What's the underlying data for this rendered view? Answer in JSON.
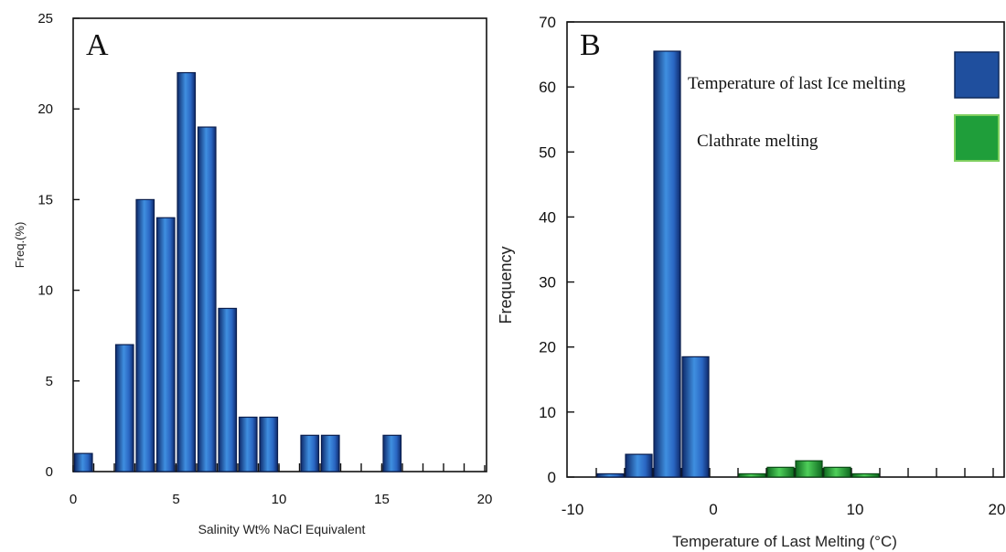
{
  "chart_data": [
    {
      "type": "bar",
      "panel": "A",
      "xlabel": "Salinity Wt% NaCl Equivalent",
      "ylabel": "Freq.(%)",
      "xlim": [
        0,
        20
      ],
      "ylim": [
        0,
        25
      ],
      "xticks": [
        0,
        5,
        10,
        15,
        20
      ],
      "yticks": [
        0,
        5,
        10,
        15,
        20,
        25
      ],
      "bin_width": 1,
      "bars": [
        {
          "x": 0,
          "value": 1
        },
        {
          "x": 2,
          "value": 7
        },
        {
          "x": 3,
          "value": 15
        },
        {
          "x": 4,
          "value": 14
        },
        {
          "x": 5,
          "value": 22
        },
        {
          "x": 6,
          "value": 19
        },
        {
          "x": 7,
          "value": 9
        },
        {
          "x": 8,
          "value": 3
        },
        {
          "x": 9,
          "value": 3
        },
        {
          "x": 11,
          "value": 2
        },
        {
          "x": 12,
          "value": 2
        },
        {
          "x": 15,
          "value": 2
        }
      ],
      "bar_color": "#1f4f9e",
      "grid": false
    },
    {
      "type": "bar",
      "panel": "B",
      "xlabel": "Temperature of Last Melting (°C)",
      "ylabel": "Frequency",
      "ylim": [
        0,
        70
      ],
      "yticks": [
        0,
        10,
        20,
        30,
        40,
        50,
        60,
        70
      ],
      "xticks": [
        "-10",
        "0",
        "10",
        "20"
      ],
      "legend_position": "top-right",
      "series": [
        {
          "name": "Temperature of last Ice melting",
          "color": "#1f4f9e",
          "bars": [
            {
              "slot": 0,
              "value": 0.5
            },
            {
              "slot": 1,
              "value": 3.5
            },
            {
              "slot": 2,
              "value": 65.5
            },
            {
              "slot": 3,
              "value": 18.5
            }
          ]
        },
        {
          "name": "Clathrate melting",
          "color": "#1f9e3a",
          "bars": [
            {
              "slot": 5,
              "value": 0.5
            },
            {
              "slot": 6,
              "value": 1.5
            },
            {
              "slot": 7,
              "value": 2.5
            },
            {
              "slot": 8,
              "value": 1.5
            },
            {
              "slot": 9,
              "value": 0.5
            }
          ]
        }
      ],
      "grid": false
    }
  ]
}
